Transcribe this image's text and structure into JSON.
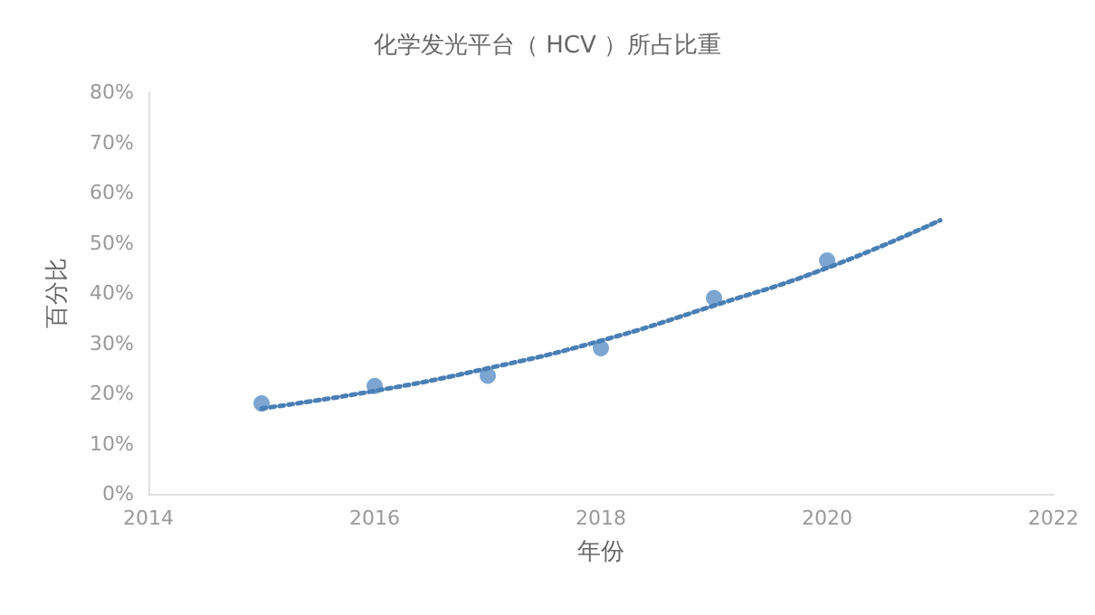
{
  "chart_data": {
    "type": "scatter",
    "title": "化学发光平台（ HCV ）所占比重",
    "xlabel": "年份",
    "ylabel": "百分比",
    "series": [
      {
        "color": "#5b8fc7",
        "x": [
          2015,
          2016,
          2017,
          2018,
          2019,
          2020
        ],
        "values": [
          18,
          21.5,
          23.5,
          29,
          39,
          46.5
        ],
        "marker": "circle"
      },
      {
        "type": "line",
        "color": "#4a7fb5",
        "x": [
          2015,
          2016,
          2017,
          2018,
          2019,
          2020,
          2021
        ],
        "values": [
          17,
          20.5,
          25,
          30.5,
          37.5,
          45,
          54.5
        ],
        "line_style": "dotted",
        "marker": "none"
      }
    ],
    "xlim": [
      2014,
      2022
    ],
    "xticks": [
      2014,
      2016,
      2018,
      2020,
      2022
    ],
    "ylim": [
      0,
      80
    ],
    "yticks": [
      {
        "value": 0,
        "label": "0%"
      },
      {
        "value": 10,
        "label": "10%"
      },
      {
        "value": 20,
        "label": "20%"
      },
      {
        "value": 30,
        "label": "30%"
      },
      {
        "value": 40,
        "label": "40%"
      },
      {
        "value": 50,
        "label": "50%"
      },
      {
        "value": 60,
        "label": "60%"
      },
      {
        "value": 70,
        "label": "70%"
      },
      {
        "value": 80,
        "label": "80%"
      }
    ],
    "grid": false
  }
}
